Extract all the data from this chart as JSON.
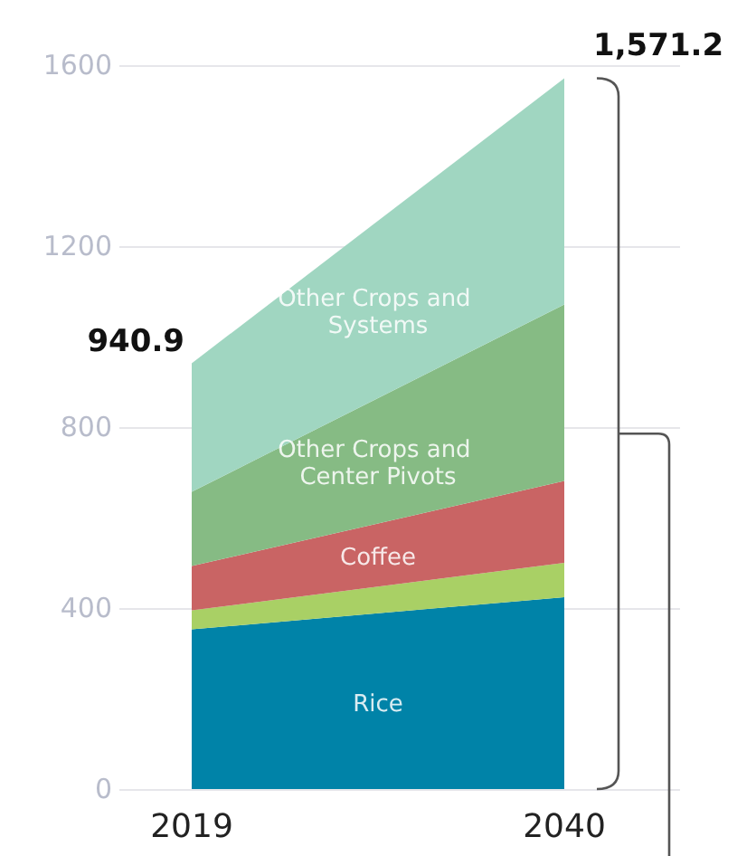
{
  "chart_data": {
    "type": "area",
    "stacked": true,
    "categories": [
      "2019",
      "2040"
    ],
    "series": [
      {
        "name": "Rice",
        "color": "#0083a8",
        "values": [
          353,
          424
        ]
      },
      {
        "color": "#a9d065",
        "values": [
          42,
          76
        ]
      },
      {
        "name": "Coffee",
        "color": "#c96464",
        "values": [
          98,
          181
        ]
      },
      {
        "name": "Other Crops and Center Pivots",
        "color": "#86bb84",
        "values": [
          164,
          390
        ]
      },
      {
        "name": "Other Crops and Systems",
        "color": "#a0d6c1",
        "values": [
          284,
          500
        ]
      }
    ],
    "totals": [
      "940.9",
      "1,571.2"
    ],
    "ylim": [
      0,
      1600
    ],
    "yticks": [
      0,
      400,
      800,
      1200,
      1600
    ],
    "grid": "y",
    "legend": false
  }
}
